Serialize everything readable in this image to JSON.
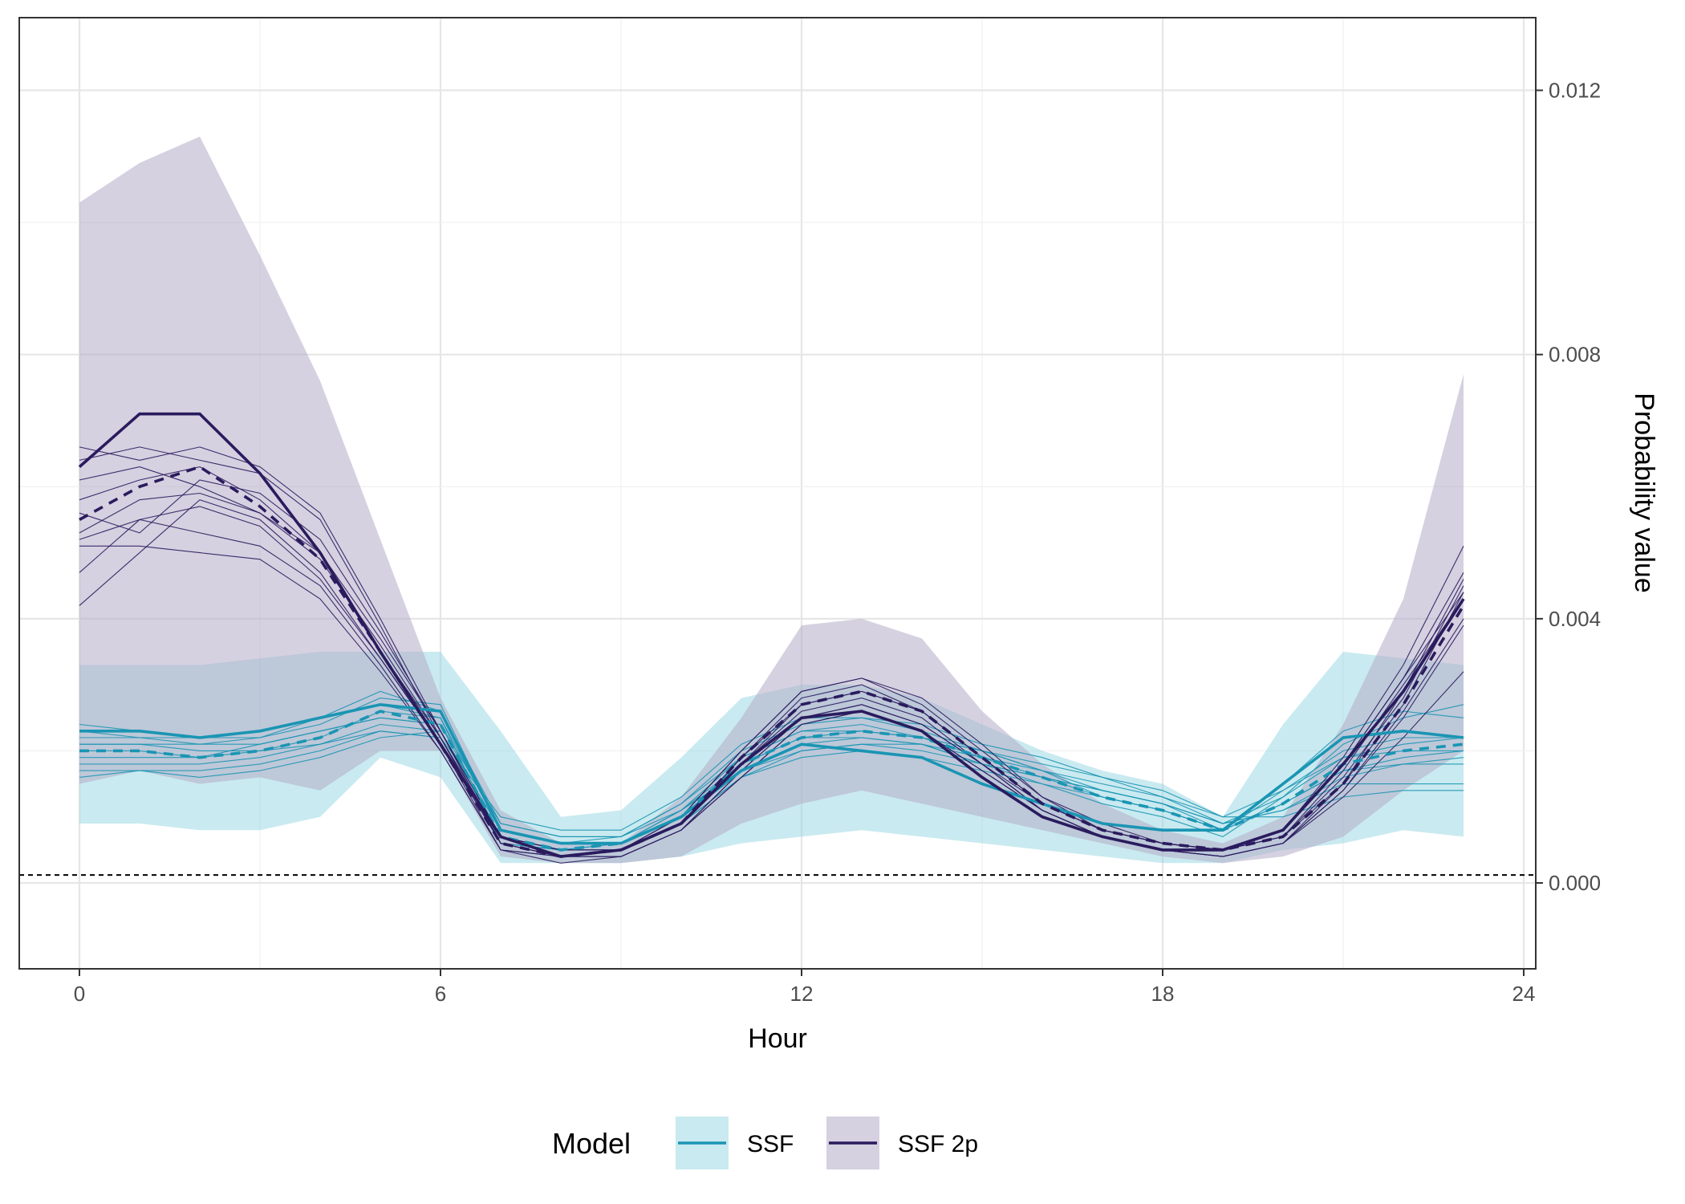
{
  "chart_data": {
    "type": "line",
    "xlabel": "Hour",
    "ylabel": "Probability value",
    "xlim": [
      -1,
      24.2
    ],
    "ylim": [
      -0.0013,
      0.0131
    ],
    "x_ticks": [
      0,
      6,
      12,
      18,
      24
    ],
    "x_tick_labels": [
      "0",
      "6",
      "12",
      "18",
      "24"
    ],
    "y_ticks": [
      0.0,
      0.004,
      0.008,
      0.012
    ],
    "y_tick_labels": [
      "0.000",
      "0.004",
      "0.008",
      "0.012"
    ],
    "y_axis_position": "right",
    "grid": true,
    "reference_line": {
      "y": 0.00012,
      "style": "dashed"
    },
    "x": [
      0,
      1,
      2,
      3,
      4,
      5,
      6,
      7,
      8,
      9,
      10,
      11,
      12,
      13,
      14,
      15,
      16,
      17,
      18,
      19,
      20,
      21,
      22,
      23
    ],
    "series": [
      {
        "name": "SSF",
        "color": "#1a95b3",
        "ribbon_fill": "#8fd3df",
        "ribbon_opacity": 0.48,
        "ribbon_low": [
          0.0009,
          0.0009,
          0.0008,
          0.0008,
          0.001,
          0.0019,
          0.0016,
          0.0003,
          0.0003,
          0.0003,
          0.0004,
          0.0006,
          0.0007,
          0.0008,
          0.0007,
          0.0006,
          0.0005,
          0.0004,
          0.0003,
          0.0003,
          0.0005,
          0.0006,
          0.0008,
          0.0007
        ],
        "ribbon_high": [
          0.0033,
          0.0033,
          0.0033,
          0.0034,
          0.0035,
          0.0035,
          0.0035,
          0.0023,
          0.001,
          0.0011,
          0.0019,
          0.0028,
          0.003,
          0.003,
          0.0028,
          0.0024,
          0.002,
          0.0017,
          0.0015,
          0.001,
          0.0024,
          0.0035,
          0.0034,
          0.0033
        ],
        "mean": [
          0.0023,
          0.0023,
          0.0022,
          0.0023,
          0.0025,
          0.0027,
          0.0026,
          0.0008,
          0.0006,
          0.0006,
          0.001,
          0.0017,
          0.0021,
          0.002,
          0.0019,
          0.0015,
          0.0012,
          0.0009,
          0.0008,
          0.0008,
          0.0015,
          0.0022,
          0.0023,
          0.0022
        ],
        "median": [
          0.002,
          0.002,
          0.0019,
          0.002,
          0.0022,
          0.0026,
          0.0024,
          0.0007,
          0.0005,
          0.0006,
          0.001,
          0.0018,
          0.0022,
          0.0023,
          0.0022,
          0.0019,
          0.0016,
          0.0013,
          0.0011,
          0.0008,
          0.0012,
          0.0018,
          0.002,
          0.0021
        ],
        "individuals": [
          [
            0.0024,
            0.0023,
            0.0022,
            0.0022,
            0.0024,
            0.0028,
            0.0027,
            0.0008,
            0.0006,
            0.0006,
            0.0011,
            0.0019,
            0.0023,
            0.0024,
            0.0022,
            0.002,
            0.0017,
            0.0013,
            0.0011,
            0.0008,
            0.0014,
            0.002,
            0.0022,
            0.0022
          ],
          [
            0.0019,
            0.0019,
            0.0019,
            0.0021,
            0.0023,
            0.0025,
            0.0024,
            0.0007,
            0.0005,
            0.0005,
            0.0009,
            0.0016,
            0.002,
            0.0021,
            0.0021,
            0.0019,
            0.0016,
            0.0014,
            0.0012,
            0.0008,
            0.0012,
            0.0017,
            0.0018,
            0.0019
          ],
          [
            0.0017,
            0.0017,
            0.0016,
            0.0017,
            0.0019,
            0.0022,
            0.0023,
            0.0008,
            0.0006,
            0.0007,
            0.0012,
            0.0019,
            0.0023,
            0.0023,
            0.0022,
            0.0019,
            0.0017,
            0.0015,
            0.0013,
            0.0009,
            0.0011,
            0.0015,
            0.0015,
            0.0015
          ],
          [
            0.0021,
            0.0021,
            0.002,
            0.002,
            0.0022,
            0.0026,
            0.0025,
            0.0006,
            0.0005,
            0.0005,
            0.0009,
            0.0016,
            0.0019,
            0.002,
            0.0019,
            0.0017,
            0.0015,
            0.0012,
            0.001,
            0.0007,
            0.0013,
            0.0021,
            0.0025,
            0.0027
          ],
          [
            0.0022,
            0.0022,
            0.0021,
            0.0022,
            0.0025,
            0.0029,
            0.0026,
            0.0009,
            0.0007,
            0.0007,
            0.0012,
            0.002,
            0.0024,
            0.0025,
            0.0024,
            0.0021,
            0.0019,
            0.0016,
            0.0013,
            0.001,
            0.0014,
            0.0019,
            0.002,
            0.002
          ],
          [
            0.0018,
            0.0018,
            0.0018,
            0.0019,
            0.0021,
            0.0024,
            0.0023,
            0.0007,
            0.0005,
            0.0006,
            0.001,
            0.0017,
            0.0021,
            0.0022,
            0.0021,
            0.0018,
            0.0016,
            0.0013,
            0.0011,
            0.0008,
            0.0012,
            0.0017,
            0.0019,
            0.002
          ],
          [
            0.002,
            0.002,
            0.0019,
            0.002,
            0.0021,
            0.0023,
            0.0022,
            0.001,
            0.0008,
            0.0008,
            0.0013,
            0.0021,
            0.0025,
            0.0025,
            0.0023,
            0.002,
            0.0017,
            0.0014,
            0.0012,
            0.0009,
            0.0011,
            0.0016,
            0.0018,
            0.0018
          ],
          [
            0.0023,
            0.0022,
            0.0022,
            0.0023,
            0.0025,
            0.0027,
            0.0025,
            0.0008,
            0.0006,
            0.0006,
            0.001,
            0.0018,
            0.0022,
            0.0022,
            0.0021,
            0.0018,
            0.0015,
            0.0013,
            0.0011,
            0.0008,
            0.0015,
            0.0023,
            0.0026,
            0.0025
          ],
          [
            0.0016,
            0.0017,
            0.0017,
            0.0018,
            0.002,
            0.0023,
            0.0022,
            0.0006,
            0.0005,
            0.0006,
            0.0011,
            0.0018,
            0.0022,
            0.0023,
            0.0022,
            0.002,
            0.0018,
            0.0016,
            0.0014,
            0.001,
            0.001,
            0.0013,
            0.0014,
            0.0014
          ],
          [
            0.0021,
            0.0021,
            0.0021,
            0.0021,
            0.0023,
            0.0025,
            0.0024,
            0.0009,
            0.0007,
            0.0007,
            0.0011,
            0.0017,
            0.002,
            0.0021,
            0.002,
            0.0018,
            0.0016,
            0.0014,
            0.0012,
            0.0009,
            0.0013,
            0.0019,
            0.0021,
            0.0022
          ]
        ]
      },
      {
        "name": "SSF 2p",
        "color": "#2a1b5e",
        "ribbon_fill": "#b2acc6",
        "ribbon_opacity": 0.55,
        "ribbon_low": [
          0.0015,
          0.0017,
          0.0015,
          0.0016,
          0.0014,
          0.002,
          0.002,
          0.0004,
          0.0003,
          0.0003,
          0.0004,
          0.0009,
          0.0012,
          0.0014,
          0.0012,
          0.001,
          0.0008,
          0.0006,
          0.0004,
          0.0003,
          0.0004,
          0.0007,
          0.0014,
          0.002
        ],
        "ribbon_high": [
          0.0103,
          0.0109,
          0.0113,
          0.0095,
          0.0076,
          0.0052,
          0.0028,
          0.0011,
          0.0006,
          0.0006,
          0.0013,
          0.0025,
          0.0039,
          0.004,
          0.0037,
          0.0026,
          0.0018,
          0.0012,
          0.0008,
          0.0006,
          0.001,
          0.0024,
          0.0043,
          0.0077
        ],
        "mean": [
          0.0063,
          0.0071,
          0.0071,
          0.0062,
          0.005,
          0.0035,
          0.0021,
          0.0007,
          0.0004,
          0.0005,
          0.0009,
          0.0018,
          0.0025,
          0.0026,
          0.0023,
          0.0016,
          0.001,
          0.0007,
          0.0005,
          0.0005,
          0.0008,
          0.0018,
          0.0029,
          0.0043
        ],
        "median": [
          0.0055,
          0.006,
          0.0063,
          0.0057,
          0.0049,
          0.0035,
          0.0021,
          0.0006,
          0.0004,
          0.0005,
          0.0009,
          0.0019,
          0.0027,
          0.0029,
          0.0026,
          0.0019,
          0.0012,
          0.0008,
          0.0006,
          0.0005,
          0.0007,
          0.0015,
          0.0027,
          0.0042
        ],
        "individuals": [
          [
            0.0066,
            0.0064,
            0.0066,
            0.0063,
            0.0056,
            0.004,
            0.0023,
            0.0007,
            0.0005,
            0.0005,
            0.0009,
            0.0019,
            0.0028,
            0.003,
            0.0026,
            0.0019,
            0.0012,
            0.0008,
            0.0006,
            0.0005,
            0.0008,
            0.0018,
            0.0031,
            0.0047
          ],
          [
            0.0058,
            0.0061,
            0.0063,
            0.0058,
            0.005,
            0.0035,
            0.0022,
            0.0006,
            0.0004,
            0.0005,
            0.0009,
            0.0018,
            0.0027,
            0.0029,
            0.0026,
            0.0019,
            0.0012,
            0.0008,
            0.0006,
            0.0005,
            0.0007,
            0.0016,
            0.0028,
            0.0045
          ],
          [
            0.0052,
            0.0055,
            0.0057,
            0.0054,
            0.0046,
            0.0034,
            0.0021,
            0.0005,
            0.0004,
            0.0004,
            0.0008,
            0.0017,
            0.0025,
            0.0027,
            0.0024,
            0.0018,
            0.0011,
            0.0007,
            0.0005,
            0.0004,
            0.0006,
            0.0014,
            0.0026,
            0.004
          ],
          [
            0.0042,
            0.005,
            0.0058,
            0.0055,
            0.0047,
            0.0034,
            0.0021,
            0.0006,
            0.0004,
            0.0005,
            0.001,
            0.002,
            0.0029,
            0.0031,
            0.0028,
            0.0021,
            0.0013,
            0.0008,
            0.0006,
            0.0005,
            0.0007,
            0.0015,
            0.0027,
            0.0044
          ],
          [
            0.0051,
            0.0051,
            0.005,
            0.0049,
            0.0043,
            0.0032,
            0.002,
            0.0005,
            0.0004,
            0.0004,
            0.0008,
            0.0016,
            0.0024,
            0.0026,
            0.0023,
            0.0017,
            0.0011,
            0.0007,
            0.0005,
            0.0004,
            0.0006,
            0.0013,
            0.0022,
            0.0032
          ],
          [
            0.0061,
            0.0063,
            0.006,
            0.0056,
            0.005,
            0.0037,
            0.0023,
            0.0007,
            0.0005,
            0.0005,
            0.0009,
            0.0019,
            0.0027,
            0.0029,
            0.0026,
            0.0019,
            0.0012,
            0.0008,
            0.0006,
            0.0005,
            0.0008,
            0.0019,
            0.0033,
            0.0051
          ],
          [
            0.0053,
            0.0058,
            0.0059,
            0.0056,
            0.0049,
            0.0036,
            0.0022,
            0.0006,
            0.0004,
            0.0005,
            0.0009,
            0.0018,
            0.0026,
            0.0028,
            0.0025,
            0.0018,
            0.0012,
            0.0008,
            0.0006,
            0.0005,
            0.0007,
            0.0017,
            0.003,
            0.0043
          ],
          [
            0.0056,
            0.0053,
            0.0061,
            0.0059,
            0.0052,
            0.0038,
            0.0023,
            0.0006,
            0.0004,
            0.0004,
            0.0008,
            0.0017,
            0.0025,
            0.0027,
            0.0024,
            0.0018,
            0.0011,
            0.0007,
            0.0005,
            0.0004,
            0.0006,
            0.0015,
            0.0029,
            0.0046
          ],
          [
            0.0047,
            0.0055,
            0.0053,
            0.0051,
            0.0045,
            0.0033,
            0.002,
            0.0005,
            0.0003,
            0.0004,
            0.0008,
            0.0016,
            0.0024,
            0.0026,
            0.0023,
            0.0017,
            0.0011,
            0.0007,
            0.0005,
            0.0004,
            0.0006,
            0.0014,
            0.0025,
            0.0039
          ],
          [
            0.0064,
            0.0066,
            0.0064,
            0.0062,
            0.0055,
            0.0039,
            0.0022,
            0.0007,
            0.0005,
            0.0005,
            0.001,
            0.002,
            0.0029,
            0.0031,
            0.0027,
            0.002,
            0.0013,
            0.0009,
            0.0006,
            0.0005,
            0.0008,
            0.0018,
            0.0031,
            0.0044
          ]
        ]
      }
    ],
    "legend": {
      "title": "Model",
      "position": "bottom",
      "entries": [
        "SSF",
        "SSF 2p"
      ]
    }
  }
}
